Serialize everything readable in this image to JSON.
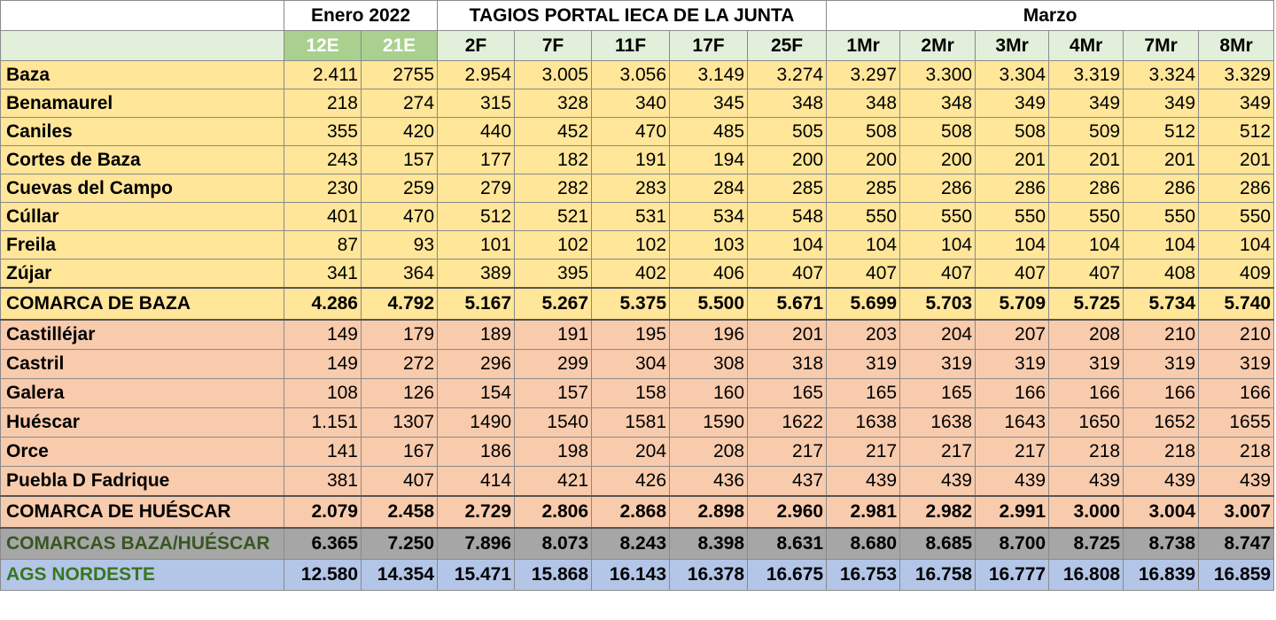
{
  "table": {
    "groups": [
      "Enero 2022",
      "TAGIOS  PORTAL IECA DE LA JUNTA",
      "Marzo"
    ],
    "columns": [
      "12E",
      "21E",
      "2F",
      "7F",
      "11F",
      "17F",
      "25F",
      "1Mr",
      "2Mr",
      "3Mr",
      "4Mr",
      "7Mr",
      "8Mr"
    ],
    "sections": [
      {
        "rows": [
          {
            "label": "Baza",
            "values": [
              "2.411",
              "2755",
              "2.954",
              "3.005",
              "3.056",
              "3.149",
              "3.274",
              "3.297",
              "3.300",
              "3.304",
              "3.319",
              "3.324",
              "3.329"
            ]
          },
          {
            "label": "Benamaurel",
            "values": [
              "218",
              "274",
              "315",
              "328",
              "340",
              "345",
              "348",
              "348",
              "348",
              "349",
              "349",
              "349",
              "349"
            ]
          },
          {
            "label": "Caniles",
            "values": [
              "355",
              "420",
              "440",
              "452",
              "470",
              "485",
              "505",
              "508",
              "508",
              "508",
              "509",
              "512",
              "512"
            ]
          },
          {
            "label": "Cortes de Baza",
            "values": [
              "243",
              "157",
              "177",
              "182",
              "191",
              "194",
              "200",
              "200",
              "200",
              "201",
              "201",
              "201",
              "201"
            ]
          },
          {
            "label": "Cuevas del Campo",
            "values": [
              "230",
              "259",
              "279",
              "282",
              "283",
              "284",
              "285",
              "285",
              "286",
              "286",
              "286",
              "286",
              "286"
            ]
          },
          {
            "label": "Cúllar",
            "values": [
              "401",
              "470",
              "512",
              "521",
              "531",
              "534",
              "548",
              "550",
              "550",
              "550",
              "550",
              "550",
              "550"
            ]
          },
          {
            "label": "Freila",
            "values": [
              "87",
              "93",
              "101",
              "102",
              "102",
              "103",
              "104",
              "104",
              "104",
              "104",
              "104",
              "104",
              "104"
            ]
          },
          {
            "label": "Zújar",
            "values": [
              "341",
              "364",
              "389",
              "395",
              "402",
              "406",
              "407",
              "407",
              "407",
              "407",
              "407",
              "408",
              "409"
            ]
          }
        ],
        "total": {
          "label": "COMARCA DE BAZA",
          "values": [
            "4.286",
            "4.792",
            "5.167",
            "5.267",
            "5.375",
            "5.500",
            "5.671",
            "5.699",
            "5.703",
            "5.709",
            "5.725",
            "5.734",
            "5.740"
          ]
        }
      },
      {
        "rows": [
          {
            "label": "Castilléjar",
            "values": [
              "149",
              "179",
              "189",
              "191",
              "195",
              "196",
              "201",
              "203",
              "204",
              "207",
              "208",
              "210",
              "210"
            ]
          },
          {
            "label": "Castril",
            "values": [
              "149",
              "272",
              "296",
              "299",
              "304",
              "308",
              "318",
              "319",
              "319",
              "319",
              "319",
              "319",
              "319"
            ]
          },
          {
            "label": "Galera",
            "values": [
              "108",
              "126",
              "154",
              "157",
              "158",
              "160",
              "165",
              "165",
              "165",
              "166",
              "166",
              "166",
              "166"
            ]
          },
          {
            "label": "Huéscar",
            "values": [
              "1.151",
              "1307",
              "1490",
              "1540",
              "1581",
              "1590",
              "1622",
              "1638",
              "1638",
              "1643",
              "1650",
              "1652",
              "1655"
            ]
          },
          {
            "label": "Orce",
            "values": [
              "141",
              "167",
              "186",
              "198",
              "204",
              "208",
              "217",
              "217",
              "217",
              "217",
              "218",
              "218",
              "218"
            ]
          },
          {
            "label": "Puebla D Fadrique",
            "values": [
              "381",
              "407",
              "414",
              "421",
              "426",
              "436",
              "437",
              "439",
              "439",
              "439",
              "439",
              "439",
              "439"
            ]
          }
        ],
        "total": {
          "label": "COMARCA DE HUÉSCAR",
          "values": [
            "2.079",
            "2.458",
            "2.729",
            "2.806",
            "2.868",
            "2.898",
            "2.960",
            "2.981",
            "2.982",
            "2.991",
            "3.000",
            "3.004",
            "3.007"
          ]
        }
      }
    ],
    "totals": [
      {
        "label": "COMARCAS BAZA/HUÉSCAR",
        "values": [
          "6.365",
          "7.250",
          "7.896",
          "8.073",
          "8.243",
          "8.398",
          "8.631",
          "8.680",
          "8.685",
          "8.700",
          "8.725",
          "8.738",
          "8.747"
        ]
      },
      {
        "label": "AGS NORDESTE",
        "values": [
          "12.580",
          "14.354",
          "15.471",
          "15.868",
          "16.143",
          "16.378",
          "16.675",
          "16.753",
          "16.758",
          "16.777",
          "16.808",
          "16.839",
          "16.859"
        ]
      }
    ]
  }
}
